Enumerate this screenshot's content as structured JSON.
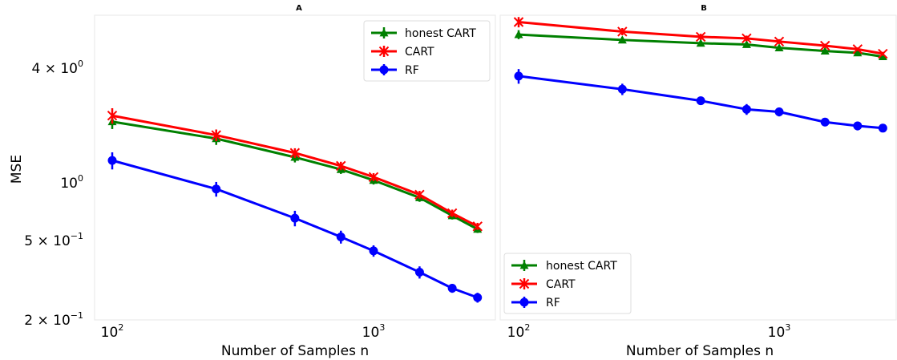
{
  "chart_data": [
    {
      "type": "line",
      "title": "A",
      "xlabel": "Number of Samples n",
      "ylabel": "MSE",
      "x_scale": "log",
      "y_scale": "log",
      "xlim": [
        75,
        3100
      ],
      "ylim": [
        0.2,
        8.5
      ],
      "x_ticks": [
        {
          "value": 100,
          "base": "10",
          "exp": "2"
        },
        {
          "value": 1000,
          "base": "10",
          "exp": "3"
        }
      ],
      "y_ticks": [
        {
          "value": 4,
          "mant": "4",
          "base": "10",
          "exp": "0"
        },
        {
          "value": 1,
          "mant": "",
          "base": "10",
          "exp": "0"
        },
        {
          "value": 0.5,
          "mant": "5",
          "base": "10",
          "exp": "−1"
        },
        {
          "value": 0.2,
          "mant": "2",
          "base": "10",
          "exp": "−1"
        }
      ],
      "legend_position": "top-right",
      "x": [
        100,
        250,
        500,
        750,
        1000,
        1500,
        2000,
        2500
      ],
      "series": [
        {
          "name": "honest CART",
          "color": "#008000",
          "marker": "triangle",
          "values": [
            2.05,
            1.68,
            1.35,
            1.17,
            1.03,
            0.84,
            0.68,
            0.58
          ],
          "err": [
            0.17,
            0.12,
            0.08,
            0.06,
            0.05,
            0.04,
            0.03,
            0.025
          ]
        },
        {
          "name": "CART",
          "color": "#ff0000",
          "marker": "x",
          "values": [
            2.2,
            1.75,
            1.42,
            1.22,
            1.07,
            0.87,
            0.7,
            0.6
          ],
          "err": [
            0.2,
            0.12,
            0.08,
            0.06,
            0.05,
            0.04,
            0.03,
            0.025
          ]
        },
        {
          "name": "RF",
          "color": "#0000ff",
          "marker": "circle",
          "values": [
            1.3,
            0.93,
            0.66,
            0.53,
            0.45,
            0.35,
            0.29,
            0.26
          ],
          "err": [
            0.13,
            0.08,
            0.06,
            0.04,
            0.03,
            0.025,
            0.015,
            0.015
          ]
        }
      ]
    },
    {
      "type": "line",
      "title": "B",
      "xlabel": "Number of Samples n",
      "ylabel": "",
      "x_scale": "log",
      "y_scale": "log",
      "xlim": [
        75,
        3100
      ],
      "ylim": [
        0.2,
        8.5
      ],
      "x_ticks": [
        {
          "value": 100,
          "base": "10",
          "exp": "2"
        },
        {
          "value": 1000,
          "base": "10",
          "exp": "3"
        }
      ],
      "y_ticks": [],
      "legend_position": "bottom-left",
      "x": [
        100,
        250,
        500,
        750,
        1000,
        1500,
        2000,
        2500
      ],
      "series": [
        {
          "name": "honest CART",
          "color": "#008000",
          "marker": "triangle",
          "values": [
            5.7,
            5.35,
            5.15,
            5.07,
            4.88,
            4.7,
            4.6,
            4.4
          ],
          "err": [
            0.3,
            0.2,
            0.15,
            0.12,
            0.1,
            0.1,
            0.08,
            0.08
          ]
        },
        {
          "name": "CART",
          "color": "#ff0000",
          "marker": "x",
          "values": [
            6.6,
            5.9,
            5.55,
            5.45,
            5.25,
            5.0,
            4.8,
            4.55
          ],
          "err": [
            0.4,
            0.25,
            0.2,
            0.18,
            0.15,
            0.12,
            0.1,
            0.1
          ]
        },
        {
          "name": "RF",
          "color": "#0000ff",
          "marker": "circle",
          "values": [
            3.5,
            3.0,
            2.62,
            2.37,
            2.3,
            2.04,
            1.95,
            1.9
          ],
          "err": [
            0.3,
            0.2,
            0.12,
            0.15,
            0.12,
            0.1,
            0.1,
            0.08
          ]
        }
      ]
    }
  ]
}
